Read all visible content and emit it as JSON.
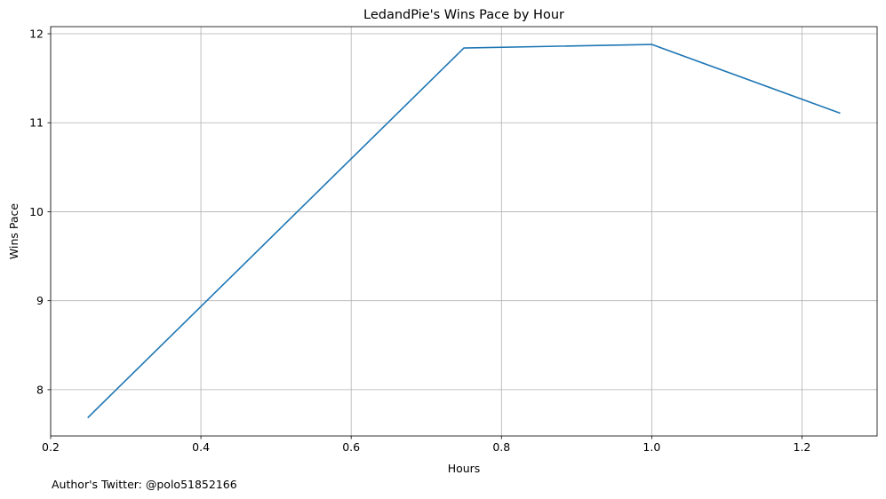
{
  "chart_data": {
    "type": "line",
    "title": "LedandPie's Wins Pace by Hour",
    "xlabel": "Hours",
    "ylabel": "Wins Pace",
    "xlim": [
      0.2,
      1.3
    ],
    "ylim": [
      7.48,
      12.08
    ],
    "xticks": [
      0.2,
      0.4,
      0.6,
      0.8,
      1.0,
      1.2
    ],
    "xtick_labels": [
      "0.2",
      "0.4",
      "0.6",
      "0.8",
      "1.0",
      "1.2"
    ],
    "yticks": [
      8,
      9,
      10,
      11,
      12
    ],
    "ytick_labels": [
      "8",
      "9",
      "10",
      "11",
      "12"
    ],
    "grid": true,
    "series": [
      {
        "color": "#1f77b4",
        "x": [
          0.25,
          0.75,
          1.0,
          1.25
        ],
        "y": [
          7.69,
          11.84,
          11.88,
          11.11
        ]
      }
    ]
  },
  "footnote": "Author's Twitter: @polo51852166"
}
